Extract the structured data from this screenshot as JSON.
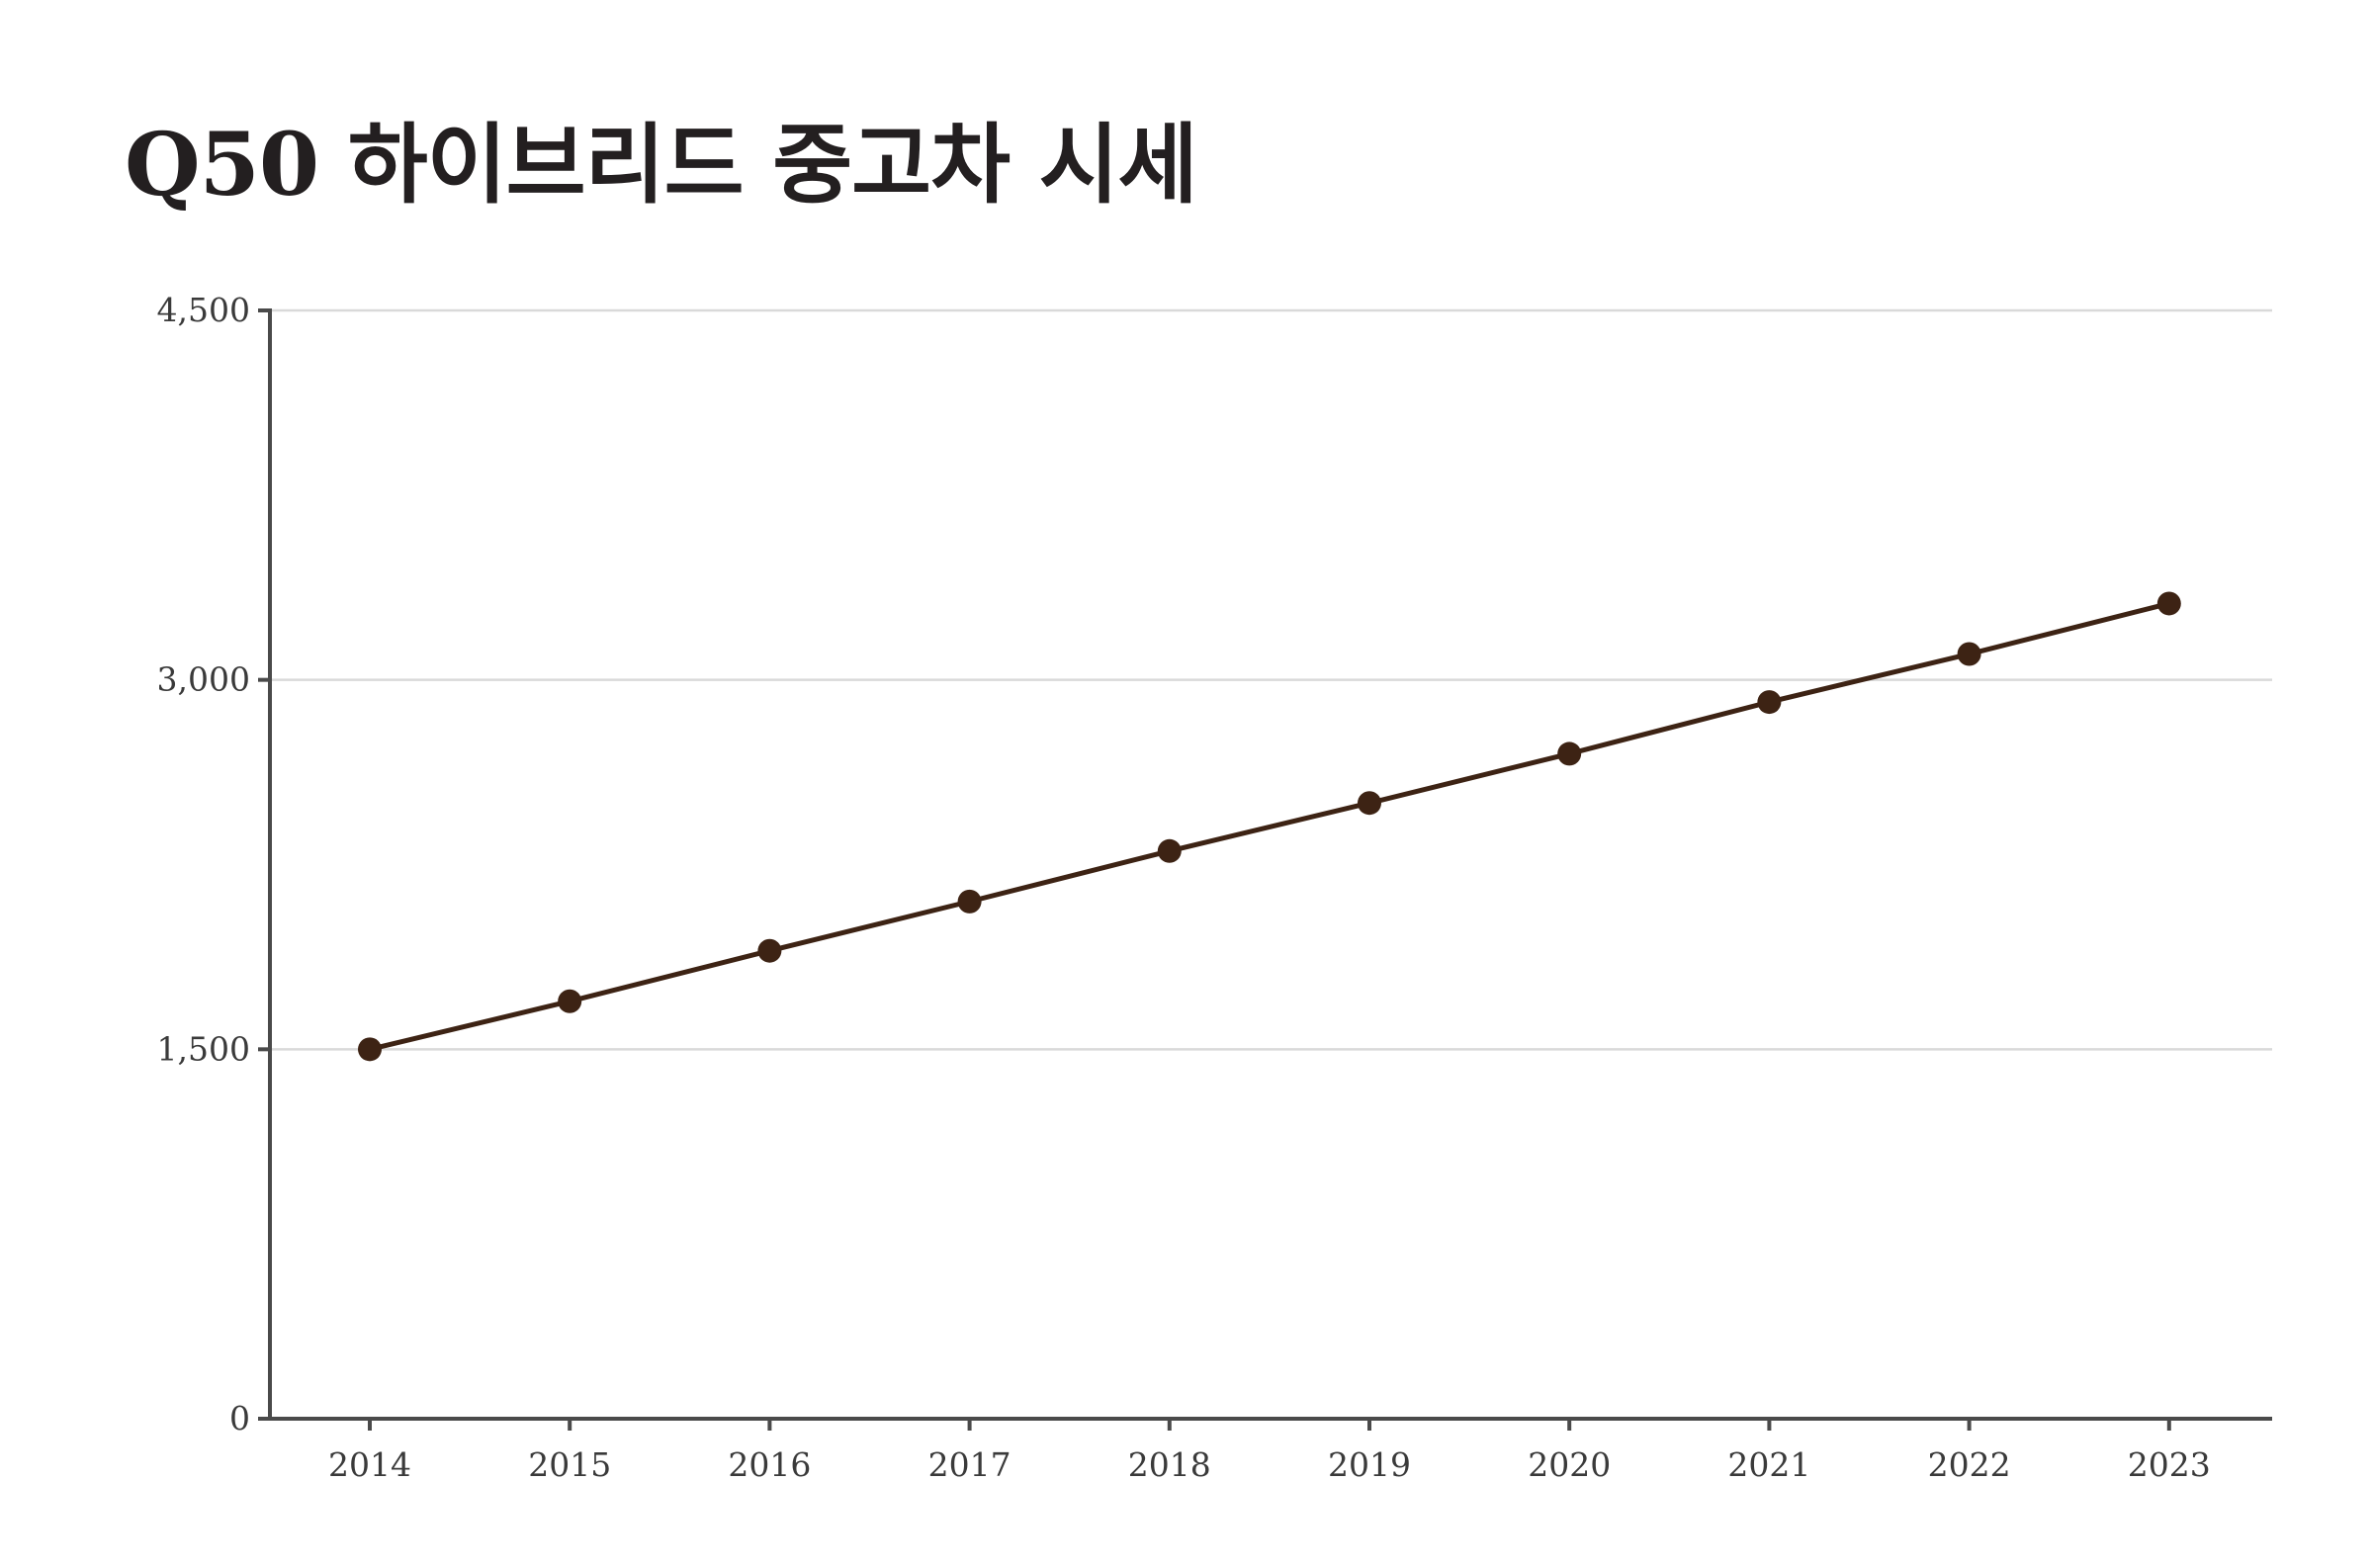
{
  "chart_data": {
    "type": "line",
    "title": "Q50 하이브리드 중고차 시세",
    "xlabel": "",
    "ylabel": "",
    "x": [
      "2014",
      "2015",
      "2016",
      "2017",
      "2018",
      "2019",
      "2020",
      "2021",
      "2022",
      "2023"
    ],
    "series": [
      {
        "values": [
          1500,
          1695,
          1900,
          2100,
          2305,
          2500,
          2700,
          2910,
          3105,
          3310
        ]
      }
    ],
    "ylim": [
      0,
      4500
    ],
    "yticks": [
      0,
      1500,
      3000,
      4500
    ],
    "ytick_labels": [
      "0",
      "1,500",
      "3,000",
      "4,500"
    ],
    "grid": true,
    "legend": "none",
    "colors": {
      "line": "#3d2314",
      "marker": "#3d2314",
      "axis": "#4a4a4a",
      "grid": "#d9d9d9",
      "title": "#231f20"
    }
  }
}
